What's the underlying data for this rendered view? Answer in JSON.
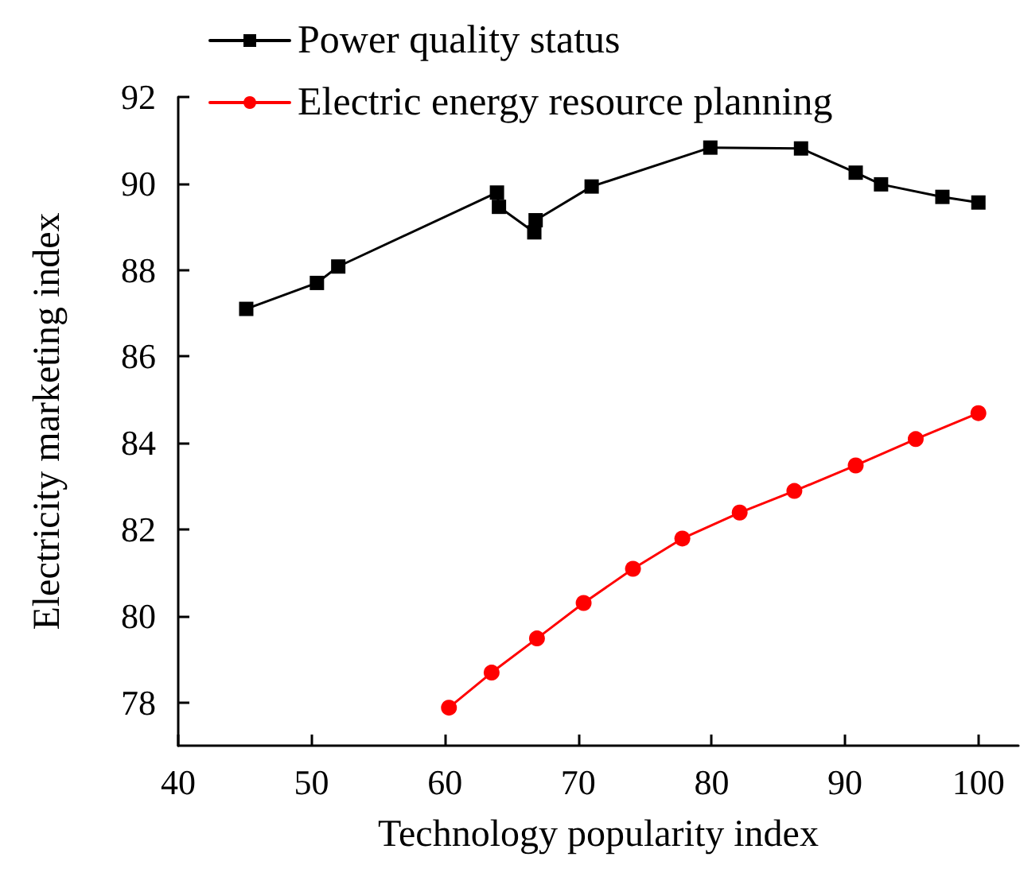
{
  "chart_data": {
    "type": "line",
    "xlabel": "Technology popularity index",
    "ylabel": "Electricity marketing index",
    "xlim": [
      40,
      103
    ],
    "xticks": [
      40,
      50,
      60,
      70,
      80,
      90,
      100
    ],
    "ylim": [
      77,
      92
    ],
    "yticks": [
      78,
      80,
      82,
      84,
      86,
      88,
      90,
      92
    ],
    "grid": false,
    "legend": "top left",
    "line_style": "solid",
    "series": [
      {
        "name": "Power quality status",
        "color": "#000000",
        "marker": "square",
        "x": [
          45.1,
          50.4,
          52.0,
          63.9,
          64.05,
          66.7,
          66.8,
          71.0,
          79.9,
          86.7,
          90.8,
          92.7,
          97.3,
          100.0
        ],
        "values": [
          87.1,
          87.7,
          88.08,
          89.79,
          89.46,
          88.87,
          89.15,
          89.93,
          90.83,
          90.81,
          90.25,
          89.98,
          89.69,
          89.56
        ]
      },
      {
        "name": "Electric energy resource planning",
        "color": "#ff0000",
        "marker": "circle",
        "x": [
          60.3,
          63.5,
          66.9,
          70.4,
          74.1,
          77.8,
          82.1,
          86.2,
          90.8,
          95.3,
          100.0
        ],
        "values": [
          77.88,
          78.69,
          79.48,
          80.3,
          81.09,
          81.79,
          82.39,
          82.89,
          83.48,
          84.09,
          84.69
        ]
      }
    ]
  }
}
